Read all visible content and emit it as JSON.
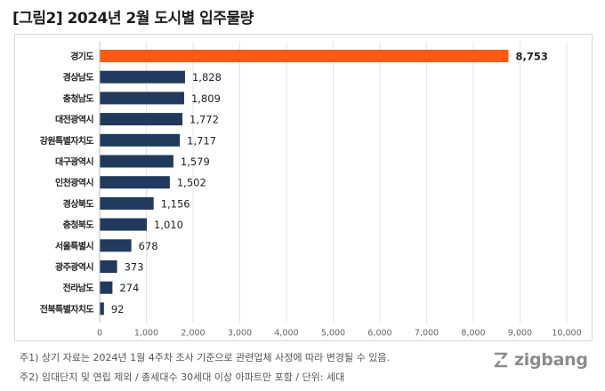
{
  "title": "[그림2]  2024년 2월 도시별 입주물량",
  "notes": [
    "주1) 상기 자료는 2024년 1월 4주차 조사 기준으로 관련업체 사정에 따라 변경될 수 있음.",
    "주2) 임대단지 및 연립 제외 / 총세대수 30세대 이상 아파트만 포함 / 단위: 세대"
  ],
  "logo": {
    "text": "zigbang",
    "icon": "zigbang-logo-icon"
  },
  "colors": {
    "highlight": "#ff5a10",
    "bar": "#1f3a5c",
    "grid": "#e3e3e3"
  },
  "chart_data": {
    "type": "bar",
    "orientation": "horizontal",
    "categories": [
      "경기도",
      "경상남도",
      "충청남도",
      "대전광역시",
      "강원특별자치도",
      "대구광역시",
      "인천광역시",
      "경상북도",
      "충청북도",
      "서울특별시",
      "광주광역시",
      "전라남도",
      "전북특별자치도"
    ],
    "values": [
      8753,
      1828,
      1809,
      1772,
      1717,
      1579,
      1502,
      1156,
      1010,
      678,
      373,
      274,
      92
    ],
    "value_labels": [
      "8,753",
      "1,828",
      "1,809",
      "1,772",
      "1,717",
      "1,579",
      "1,502",
      "1,156",
      "1,010",
      "678",
      "373",
      "274",
      "92"
    ],
    "highlight_index": 0,
    "xlim": [
      0,
      10000
    ],
    "xticks": [
      0,
      1000,
      2000,
      3000,
      4000,
      5000,
      6000,
      7000,
      8000,
      9000,
      10000
    ],
    "xtick_labels": [
      "0",
      "1,000",
      "2,000",
      "3,000",
      "4,000",
      "5,000",
      "6,000",
      "7,000",
      "8,000",
      "9,000",
      "10,000"
    ],
    "grid": "vertical",
    "xlabel": "",
    "ylabel": ""
  }
}
